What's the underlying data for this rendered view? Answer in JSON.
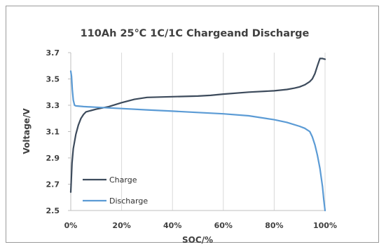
{
  "chart_data": {
    "type": "line",
    "title": "110Ah 25℃ 1C/1C Chargeand Discharge",
    "xlabel": "SOC/%",
    "ylabel": "Voltage/V",
    "xlim": [
      0,
      100
    ],
    "ylim": [
      2.5,
      3.7
    ],
    "x_ticks": [
      "0%",
      "20%",
      "40%",
      "60%",
      "80%",
      "100%"
    ],
    "y_ticks": [
      "2.5",
      "2.7",
      "2.9",
      "3.1",
      "3.3",
      "3.5",
      "3.7"
    ],
    "grid": "vertical",
    "legend_position": "bottom-left",
    "series": [
      {
        "name": "Charge",
        "color": "#3d4b5c",
        "x": [
          0,
          0.5,
          1,
          2,
          3,
          4,
          5,
          6,
          8,
          10,
          15,
          20,
          25,
          30,
          40,
          50,
          55,
          60,
          70,
          80,
          85,
          88,
          90,
          92,
          94,
          95,
          96,
          97,
          98,
          99,
          100
        ],
        "y": [
          2.64,
          2.86,
          2.97,
          3.08,
          3.15,
          3.2,
          3.23,
          3.25,
          3.26,
          3.27,
          3.29,
          3.32,
          3.345,
          3.36,
          3.365,
          3.37,
          3.375,
          3.385,
          3.4,
          3.41,
          3.42,
          3.43,
          3.44,
          3.455,
          3.48,
          3.5,
          3.54,
          3.6,
          3.655,
          3.655,
          3.65
        ]
      },
      {
        "name": "Discharge",
        "color": "#5b9bd5",
        "x": [
          0,
          0.3,
          0.6,
          1,
          1.5,
          2,
          5,
          10,
          20,
          30,
          40,
          50,
          60,
          70,
          80,
          85,
          90,
          92,
          94,
          95,
          96,
          97,
          98,
          99,
          99.5,
          100
        ],
        "y": [
          3.56,
          3.52,
          3.42,
          3.34,
          3.3,
          3.295,
          3.29,
          3.285,
          3.275,
          3.265,
          3.255,
          3.245,
          3.235,
          3.22,
          3.19,
          3.17,
          3.14,
          3.125,
          3.1,
          3.06,
          3.0,
          2.92,
          2.82,
          2.68,
          2.58,
          2.5
        ]
      }
    ]
  }
}
